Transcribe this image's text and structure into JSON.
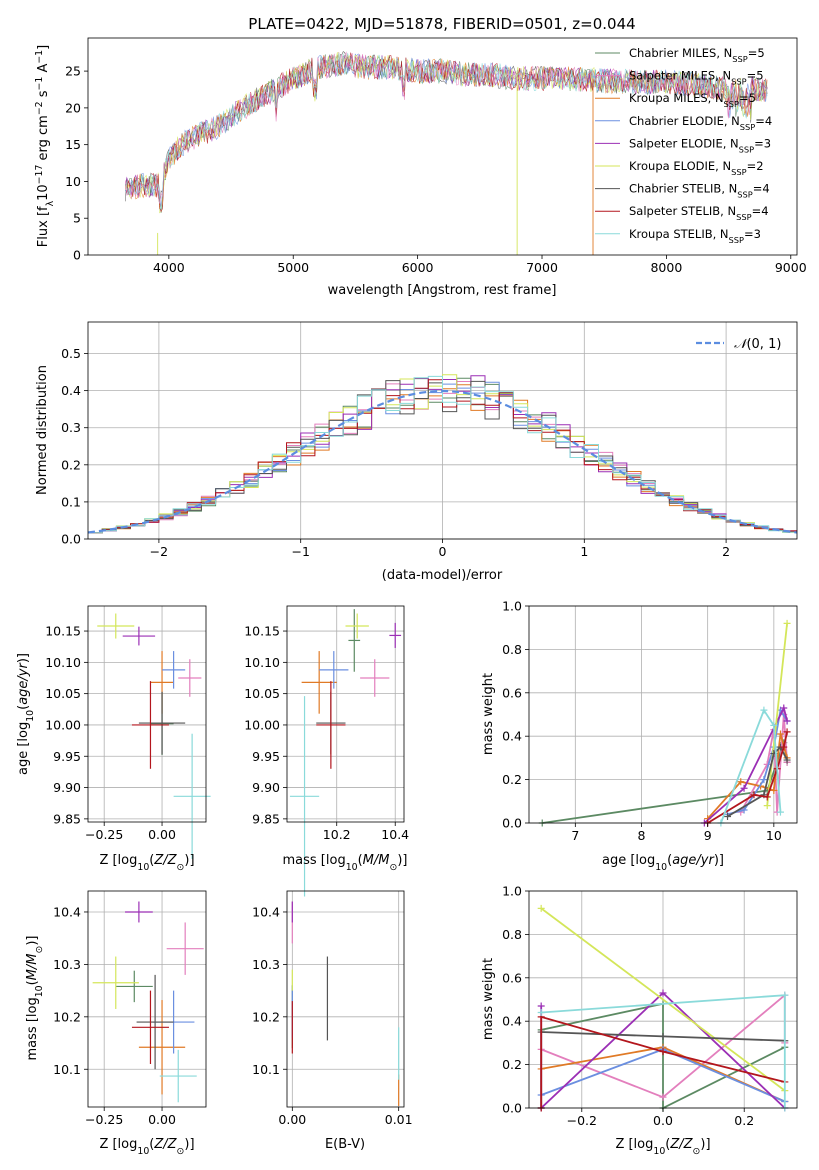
{
  "figure_title": "PLATE=0422, MJD=51878, FIBERID=0501, z=0.044",
  "colors": [
    "#5c8a63",
    "#e37fbd",
    "#e07a26",
    "#6b8fe0",
    "#9b2fb5",
    "#d4e65a",
    "#555555",
    "#b3161d",
    "#8adada"
  ],
  "chart_data": [
    {
      "id": "spectrum",
      "type": "line",
      "title": "PLATE=0422, MJD=51878, FIBERID=0501, z=0.044",
      "xlabel": "wavelength [Angstrom, rest frame]",
      "ylabel": "Flux [fλ10⁻¹⁷ erg cm⁻² s⁻¹ A⁻¹]",
      "xlim": [
        3350,
        9050
      ],
      "ylim": [
        0,
        29.5
      ],
      "xticks": [
        4000,
        5000,
        6000,
        7000,
        8000,
        9000
      ],
      "yticks": [
        0,
        5,
        10,
        15,
        20,
        25
      ],
      "grid": false,
      "legend_position": "top-right",
      "continuum_x": [
        3650,
        3800,
        3920,
        4000,
        4100,
        4200,
        4400,
        4600,
        4800,
        5000,
        5200,
        5400,
        5600,
        5800,
        6000,
        6200,
        6400,
        6600,
        6800,
        7000,
        7200,
        7400,
        7600,
        7800,
        8000,
        8200,
        8400,
        8600,
        8820
      ],
      "continuum_y": [
        9,
        9.5,
        9.5,
        13,
        15,
        16,
        17.5,
        20,
        22,
        24,
        25.5,
        26,
        25.5,
        25.5,
        25,
        25,
        24.5,
        24.5,
        24,
        24,
        24,
        23.8,
        23.6,
        23.5,
        23.5,
        23.2,
        22.8,
        22.7,
        22.5
      ],
      "series": [
        {
          "name": "Chabrier MILES, N_SSP=5"
        },
        {
          "name": "Salpeter MILES, N_SSP=5"
        },
        {
          "name": "Kroupa MILES, N_SSP=5"
        },
        {
          "name": "Chabrier ELODIE, N_SSP=4"
        },
        {
          "name": "Salpeter ELODIE, N_SSP=3"
        },
        {
          "name": "Kroupa ELODIE, N_SSP=2"
        },
        {
          "name": "Chabrier STELIB, N_SSP=4"
        },
        {
          "name": "Salpeter STELIB, N_SSP=4"
        },
        {
          "name": "Kroupa STELIB, N_SSP=3"
        }
      ]
    },
    {
      "id": "residuals",
      "type": "histogram",
      "xlabel": "(data-model)/error",
      "ylabel": "Normed distribution",
      "xlim": [
        -2.5,
        2.5
      ],
      "ylim": [
        0,
        0.585
      ],
      "xticks": [
        -2,
        -1,
        0,
        1,
        2
      ],
      "yticks": [
        0.0,
        0.1,
        0.2,
        0.3,
        0.4,
        0.5
      ],
      "grid": true,
      "legend": {
        "label": "N(0,1)",
        "position": "top-right"
      },
      "bin_width": 0.1
    },
    {
      "id": "age-vs-Z",
      "type": "errorbar",
      "xlabel": "Z [log10(Z/Z☉)]",
      "ylabel": "age  [log10(age/yr)]",
      "xlim": [
        -0.32,
        0.19
      ],
      "ylim": [
        9.845,
        10.19
      ],
      "xticks": [
        -0.25,
        0.0
      ],
      "xtick_labels": [
        "−0.25",
        "0.00"
      ],
      "yticks": [
        9.85,
        9.9,
        9.95,
        10.0,
        10.05,
        10.1,
        10.15
      ],
      "grid": true,
      "points": [
        {
          "x": 0.0,
          "y": 10.002,
          "xerr": 0.05,
          "yerr": 0.05
        },
        {
          "x": 0.12,
          "y": 10.075,
          "xerr": 0.05,
          "yerr": 0.03
        },
        {
          "x": 0.0,
          "y": 10.068,
          "xerr": 0.05,
          "yerr": 0.05
        },
        {
          "x": 0.05,
          "y": 10.088,
          "xerr": 0.05,
          "yerr": 0.03
        },
        {
          "x": -0.1,
          "y": 10.142,
          "xerr": 0.07,
          "yerr": 0.015
        },
        {
          "x": -0.2,
          "y": 10.158,
          "xerr": 0.08,
          "yerr": 0.02
        },
        {
          "x": 0.0,
          "y": 10.003,
          "xerr": 0.1,
          "yerr": 0.05
        },
        {
          "x": -0.05,
          "y": 10.0,
          "xerr": 0.08,
          "yerr": 0.07
        },
        {
          "x": 0.13,
          "y": 9.886,
          "xerr": 0.08,
          "yerr": 0.1
        }
      ]
    },
    {
      "id": "age-vs-mass",
      "type": "errorbar",
      "xlabel": "mass [log10(M/M☉)]",
      "xlim": [
        10.03,
        10.43
      ],
      "ylim": [
        9.845,
        10.19
      ],
      "xticks": [
        10.2,
        10.4
      ],
      "xtick_labels": [
        "10.2",
        "10.4"
      ],
      "yticks": [
        9.85,
        9.9,
        9.95,
        10.0,
        10.05,
        10.1,
        10.15
      ],
      "grid": true,
      "points": [
        {
          "x": 10.26,
          "y": 10.135,
          "xerr": 0.02,
          "yerr": 0.05
        },
        {
          "x": 10.33,
          "y": 10.075,
          "xerr": 0.05,
          "yerr": 0.03
        },
        {
          "x": 10.14,
          "y": 10.068,
          "xerr": 0.06,
          "yerr": 0.05
        },
        {
          "x": 10.19,
          "y": 10.088,
          "xerr": 0.05,
          "yerr": 0.03
        },
        {
          "x": 10.4,
          "y": 10.143,
          "xerr": 0.02,
          "yerr": 0.02
        },
        {
          "x": 10.27,
          "y": 10.158,
          "xerr": 0.04,
          "yerr": 0.02
        },
        {
          "x": 10.18,
          "y": 10.003,
          "xerr": 0.05,
          "yerr": 0.05
        },
        {
          "x": 10.18,
          "y": 10.0,
          "xerr": 0.05,
          "yerr": 0.07
        },
        {
          "x": 10.09,
          "y": 9.886,
          "xerr": 0.05,
          "yerr": 0.16
        }
      ]
    },
    {
      "id": "massweight-vs-age",
      "type": "line",
      "xlabel": "age  [log10(age/yr)]",
      "ylabel": "mass weight",
      "xlim": [
        6.3,
        10.35
      ],
      "ylim": [
        0,
        1
      ],
      "xticks": [
        7,
        8,
        9,
        10
      ],
      "yticks": [
        0.0,
        0.2,
        0.4,
        0.6,
        0.8,
        1.0
      ],
      "grid": true,
      "series": [
        {
          "x": [
            6.5,
            9.9,
            10.15,
            10.2
          ],
          "y": [
            0.0,
            0.15,
            0.37,
            0.28
          ]
        },
        {
          "x": [
            9.5,
            9.9,
            10.0,
            10.05,
            10.15,
            10.2
          ],
          "y": [
            0.05,
            0.27,
            0.43,
            0.05,
            0.5,
            0.28
          ]
        },
        {
          "x": [
            9.0,
            9.5,
            9.8,
            10.0,
            10.1,
            10.2
          ],
          "y": [
            0.02,
            0.19,
            0.17,
            0.15,
            0.41,
            0.3
          ]
        },
        {
          "x": [
            9.3,
            9.55,
            9.85,
            10.0,
            10.1,
            10.2
          ],
          "y": [
            0.04,
            0.06,
            0.2,
            0.35,
            0.52,
            0.47
          ]
        },
        {
          "x": [
            8.95,
            9.55,
            10.15,
            10.2
          ],
          "y": [
            0.0,
            0.16,
            0.53,
            0.47
          ]
        },
        {
          "x": [
            9.9,
            10.2
          ],
          "y": [
            0.08,
            0.92
          ]
        },
        {
          "x": [
            9.3,
            9.85,
            10.0,
            10.1,
            10.2
          ],
          "y": [
            0.03,
            0.13,
            0.32,
            0.35,
            0.29
          ]
        },
        {
          "x": [
            9.0,
            9.7,
            9.9,
            10.05,
            10.15,
            10.2
          ],
          "y": [
            0.0,
            0.13,
            0.12,
            0.25,
            0.35,
            0.42
          ]
        },
        {
          "x": [
            9.2,
            9.85,
            10.0,
            10.1
          ],
          "y": [
            0.0,
            0.52,
            0.45,
            0.05
          ]
        }
      ]
    },
    {
      "id": "mass-vs-Z",
      "type": "errorbar",
      "xlabel": "Z [log10(Z/Z☉)]",
      "ylabel": "mass [log10(M/M☉)]",
      "xlim": [
        -0.32,
        0.19
      ],
      "ylim": [
        10.028,
        10.44
      ],
      "xticks": [
        -0.25,
        0.0
      ],
      "xtick_labels": [
        "−0.25",
        "0.00"
      ],
      "yticks": [
        10.1,
        10.2,
        10.3,
        10.4
      ],
      "grid": true,
      "points": [
        {
          "x": -0.12,
          "y": 10.258,
          "xerr": 0.08,
          "yerr": 0.03
        },
        {
          "x": 0.1,
          "y": 10.33,
          "xerr": 0.08,
          "yerr": 0.05
        },
        {
          "x": 0.0,
          "y": 10.142,
          "xerr": 0.1,
          "yerr": 0.09
        },
        {
          "x": 0.05,
          "y": 10.19,
          "xerr": 0.09,
          "yerr": 0.06
        },
        {
          "x": -0.1,
          "y": 10.4,
          "xerr": 0.06,
          "yerr": 0.02
        },
        {
          "x": -0.2,
          "y": 10.265,
          "xerr": 0.1,
          "yerr": 0.05
        },
        {
          "x": -0.03,
          "y": 10.19,
          "xerr": 0.08,
          "yerr": 0.09
        },
        {
          "x": -0.05,
          "y": 10.18,
          "xerr": 0.08,
          "yerr": 0.07
        },
        {
          "x": 0.07,
          "y": 10.087,
          "xerr": 0.08,
          "yerr": 0.05
        }
      ]
    },
    {
      "id": "mass-vs-EBV",
      "type": "errorbar",
      "xlabel": "E(B-V)",
      "xlim": [
        -0.0005,
        0.0105
      ],
      "ylim": [
        10.028,
        10.44
      ],
      "xticks": [
        0.0,
        0.01
      ],
      "xtick_labels": [
        "0.00",
        "0.01"
      ],
      "yticks": [
        10.1,
        10.2,
        10.3,
        10.4
      ],
      "grid": true,
      "points": [
        {
          "x": 0.0,
          "y": 10.2,
          "xerr": 0,
          "yerr": 0.06
        },
        {
          "x": 0.0,
          "y": 10.38,
          "xerr": 0,
          "yerr": 0.04
        },
        {
          "x": 0.01,
          "y": 10.06,
          "xerr": 0,
          "yerr": 0.03
        },
        {
          "x": 0.0,
          "y": 10.21,
          "xerr": 0,
          "yerr": 0.05
        },
        {
          "x": 0.0,
          "y": 10.4,
          "xerr": 0,
          "yerr": 0.02
        },
        {
          "x": 0.0,
          "y": 10.27,
          "xerr": 0,
          "yerr": 0.02
        },
        {
          "x": 0.0033,
          "y": 10.235,
          "xerr": 0,
          "yerr": 0.08
        },
        {
          "x": 0.0,
          "y": 10.18,
          "xerr": 0,
          "yerr": 0.05
        },
        {
          "x": 0.01,
          "y": 10.13,
          "xerr": 0,
          "yerr": 0.05
        }
      ]
    },
    {
      "id": "massweight-vs-Z",
      "type": "line",
      "xlabel": "Z [log10(Z/Z☉)]",
      "ylabel": "mass weight",
      "xlim": [
        -0.33,
        0.33
      ],
      "ylim": [
        0,
        1
      ],
      "xticks": [
        -0.2,
        0.0,
        0.2
      ],
      "xtick_labels": [
        "−0.2",
        "0.0",
        "0.2"
      ],
      "yticks": [
        0.0,
        0.2,
        0.4,
        0.6,
        0.8,
        1.0
      ],
      "grid": true,
      "series": [
        {
          "x": [
            -0.3,
            -0.3,
            0.0,
            0.0,
            0.3
          ],
          "y": [
            0.0,
            0.36,
            0.48,
            0.0,
            0.28
          ]
        },
        {
          "x": [
            -0.3,
            0.0,
            0.3,
            0.3
          ],
          "y": [
            0.27,
            0.05,
            0.52,
            0.3
          ]
        },
        {
          "x": [
            -0.3,
            0.0,
            0.3
          ],
          "y": [
            0.18,
            0.28,
            0.03
          ]
        },
        {
          "x": [
            -0.3,
            0.0,
            0.3
          ],
          "y": [
            0.06,
            0.27,
            0.03
          ]
        },
        {
          "x": [
            -0.3,
            -0.3,
            0.0,
            0.3
          ],
          "y": [
            0.47,
            0.0,
            0.53,
            0.0
          ]
        },
        {
          "x": [
            -0.3,
            0.3
          ],
          "y": [
            0.92,
            0.08
          ]
        },
        {
          "x": [
            -0.3,
            0.0,
            0.3
          ],
          "y": [
            0.35,
            0.33,
            0.31
          ]
        },
        {
          "x": [
            -0.3,
            -0.3,
            0.0,
            0.3
          ],
          "y": [
            0.0,
            0.42,
            0.26,
            0.12
          ]
        },
        {
          "x": [
            -0.3,
            0.3,
            0.3
          ],
          "y": [
            0.44,
            0.52,
            0.0
          ]
        }
      ]
    }
  ]
}
